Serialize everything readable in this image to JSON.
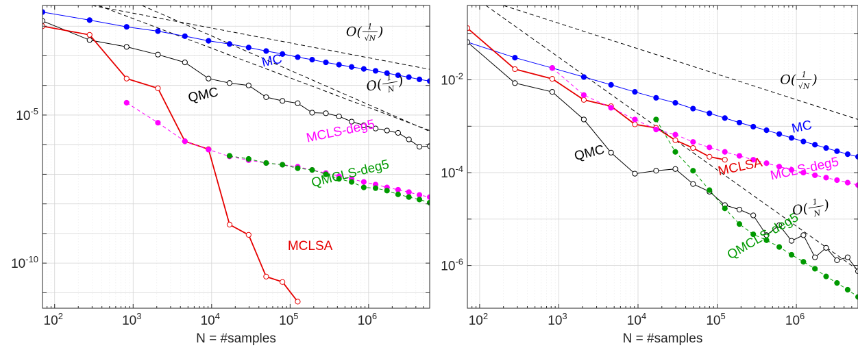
{
  "chart_data": [
    {
      "type": "line",
      "xscale": "log",
      "yscale": "log",
      "xlim": [
        70,
        6000000
      ],
      "ylim": [
        3e-12,
        0.05
      ],
      "xticks": [
        100,
        1000,
        10000,
        100000,
        1000000
      ],
      "yticks": [
        1e-05,
        1e-10
      ],
      "xlabel": "N = #samples",
      "ylabel": "",
      "grid": true,
      "series": [
        {
          "name": "MC",
          "color": "#0000ff",
          "style": "solid",
          "marker": "filled",
          "x": [
            70,
            279,
            826,
            2069,
            4566,
            9127,
            16917,
            29611,
            49527,
            79857,
            124983,
            190843,
            285495,
            419695,
            607738,
            868545,
            1227047,
            1714953,
            2374001,
            3259004,
            4442106,
            6011000
          ],
          "y": [
            0.03,
            0.016,
            0.0095,
            0.0068,
            0.0046,
            0.0032,
            0.0025,
            0.0019,
            0.00145,
            0.00115,
            0.0009,
            0.00074,
            0.0006,
            0.0005,
            0.00042,
            0.00036,
            0.00031,
            0.00026,
            0.00022,
            0.00019,
            0.00016,
            0.00014
          ]
        },
        {
          "name": "QMC",
          "color": "#000000",
          "style": "solid",
          "marker": "open",
          "x": [
            70,
            279,
            826,
            2069,
            4566,
            9127,
            16917,
            29611,
            49527,
            79857,
            124983,
            190843,
            285495,
            419695,
            607738,
            868545,
            1227047,
            1714953,
            2374001,
            3259004,
            4442106,
            6011000
          ],
          "y": [
            0.015,
            0.0034,
            0.002,
            0.0011,
            0.0006,
            0.00017,
            0.00012,
            0.0001,
            4e-05,
            3e-05,
            2.5e-05,
            1.2e-05,
            1.15e-05,
            9e-06,
            6e-06,
            4.5e-06,
            3.5e-06,
            3e-06,
            2.5e-06,
            1.5e-06,
            8.5e-07,
            9e-07
          ]
        },
        {
          "name": "MCLSA",
          "color": "#e60000",
          "style": "solid",
          "marker": "open",
          "x": [
            70,
            279,
            826,
            2069,
            4566,
            9127,
            16917,
            29611,
            49527,
            79857,
            124983
          ],
          "y": [
            0.01,
            0.0051,
            0.00017,
            8e-05,
            1.3e-06,
            7e-07,
            2e-09,
            9e-10,
            3.5e-11,
            2.3e-11,
            5e-12
          ]
        },
        {
          "name": "MCLS-deg5",
          "color": "#ff00ff",
          "style": "dashed",
          "marker": "filled",
          "x": [
            826,
            2069,
            4566,
            9127,
            16917,
            29611,
            49527,
            79857,
            124983,
            190843,
            285495,
            419695,
            607738,
            868545,
            1227047,
            1714953,
            2374001,
            3259004,
            4442106,
            6011000
          ],
          "y": [
            2.6e-05,
            5.5e-06,
            1.3e-06,
            6.8e-07,
            4e-07,
            3e-07,
            2.4e-07,
            2.1e-07,
            1.8e-07,
            1.4e-07,
            1.1e-07,
            8.5e-08,
            7e-08,
            5.5e-08,
            4.5e-08,
            3.6e-08,
            3e-08,
            2.5e-08,
            2e-08,
            1.7e-08
          ]
        },
        {
          "name": "QMCLS-deg5",
          "color": "#009900",
          "style": "dashed",
          "marker": "filled",
          "x": [
            16917,
            29611,
            49527,
            79857,
            124983,
            190843,
            285495,
            419695,
            607738,
            868545,
            1227047,
            1714953,
            2374001,
            3259004,
            4442106,
            6011000
          ],
          "y": [
            4.2e-07,
            3.3e-07,
            2.4e-07,
            2.1e-07,
            1.6e-07,
            1.4e-07,
            1e-07,
            7e-08,
            5.5e-08,
            3.6e-08,
            3.4e-08,
            2.8e-08,
            2.1e-08,
            1.7e-08,
            1.4e-08,
            1.1e-08
          ]
        }
      ],
      "reference_lines": [
        {
          "label": "O(1/√N)",
          "x": [
            300,
            6000000
          ],
          "y": [
            0.05,
            0.00035
          ]
        },
        {
          "label": "O(1/N)",
          "x": [
            300,
            6000000
          ],
          "y": [
            0.06,
            3e-06
          ]
        },
        {
          "label": "",
          "x": [
            1300,
            6000000
          ],
          "y": [
            0.05,
            2.8e-06
          ]
        }
      ],
      "labels": [
        {
          "text": "MC",
          "color": "#0000ff",
          "x": 60000,
          "y": 0.0005,
          "angle": -12
        },
        {
          "text": "QMC",
          "color": "#000000",
          "x": 8000,
          "y": 3.5e-05,
          "angle": -12
        },
        {
          "text": "MCLS-deg5",
          "color": "#ff00ff",
          "x": 450000,
          "y": 2.1e-06,
          "angle": -12
        },
        {
          "text": "QMCLS-deg5",
          "color": "#009900",
          "x": 600000,
          "y": 7.8e-08,
          "angle": -14
        },
        {
          "text": "MCLSA",
          "color": "#e60000",
          "x": 180000,
          "y": 2.8e-10,
          "angle": 0
        },
        {
          "text": "O(1/√N)",
          "color": "#000000",
          "x": 1000000,
          "y": 0.0065,
          "angle": 0
        },
        {
          "text": "O(1/N)",
          "color": "#000000",
          "x": 1800000,
          "y": 0.00012,
          "angle": -10
        }
      ]
    },
    {
      "type": "line",
      "xscale": "log",
      "yscale": "log",
      "xlim": [
        70,
        6000000
      ],
      "ylim": [
        1.2e-07,
        0.4
      ],
      "xticks": [
        100,
        1000,
        10000,
        100000,
        1000000
      ],
      "yticks": [
        0.01,
        0.0001,
        1e-06
      ],
      "xlabel": "N = #samples",
      "ylabel": "",
      "grid": true,
      "series": [
        {
          "name": "MC",
          "color": "#0000ff",
          "style": "solid",
          "marker": "filled",
          "x": [
            70,
            279,
            826,
            2069,
            4566,
            9127,
            16917,
            29611,
            49527,
            79857,
            124983,
            190843,
            285495,
            419695,
            607738,
            868545,
            1227047,
            1714953,
            2374001,
            3259004,
            4442106,
            6011000
          ],
          "y": [
            0.065,
            0.03,
            0.018,
            0.0115,
            0.0078,
            0.0055,
            0.0041,
            0.0032,
            0.0024,
            0.0019,
            0.0015,
            0.0012,
            0.00098,
            0.00082,
            0.00068,
            0.00056,
            0.00047,
            0.0004,
            0.00034,
            0.00029,
            0.00025,
            0.00022
          ]
        },
        {
          "name": "QMC",
          "color": "#000000",
          "style": "solid",
          "marker": "open",
          "x": [
            70,
            279,
            826,
            2069,
            4566,
            9127,
            16917,
            29611,
            49527,
            79857,
            124983,
            190843,
            285495,
            419695,
            607738,
            868545,
            1227047,
            1714953,
            2374001,
            3259004,
            4442106,
            6011000
          ],
          "y": [
            0.065,
            0.0085,
            0.0055,
            0.0014,
            0.00027,
            9.5e-05,
            0.00011,
            0.00012,
            5.7e-05,
            3.9e-05,
            2e-05,
            1.6e-05,
            1.2e-05,
            4.5e-06,
            7.4e-06,
            3.4e-06,
            4.5e-06,
            1.5e-06,
            2.4e-06,
            1.3e-06,
            1.5e-06,
            7.5e-07
          ]
        },
        {
          "name": "MCLSA",
          "color": "#e60000",
          "style": "solid",
          "marker": "open",
          "x": [
            70,
            279,
            826,
            2069,
            4566,
            9127,
            16917,
            29611,
            49527,
            79857,
            124983
          ],
          "y": [
            0.13,
            0.017,
            0.0105,
            0.0037,
            0.0027,
            0.0011,
            0.00092,
            0.0005,
            0.00034,
            0.00022,
            0.00019
          ]
        },
        {
          "name": "MCLS-deg5",
          "color": "#ff00ff",
          "style": "dashed",
          "marker": "filled",
          "x": [
            826,
            2069,
            4566,
            9127,
            16917,
            29611,
            49527,
            79857,
            124983,
            190843,
            285495,
            419695,
            607738,
            868545,
            1227047,
            1714953,
            2374001,
            3259004,
            4442106,
            6011000
          ],
          "y": [
            0.018,
            0.0047,
            0.0025,
            0.0014,
            0.00085,
            0.00066,
            0.00046,
            0.00035,
            0.00028,
            0.00023,
            0.00019,
            0.00016,
            0.000135,
            0.000115,
            0.0001,
            8.8e-05,
            7.8e-05,
            6.9e-05,
            6.1e-05,
            5.4e-05
          ]
        },
        {
          "name": "QMCLS-deg5",
          "color": "#009900",
          "style": "dashed",
          "marker": "filled",
          "x": [
            16917,
            29611,
            49527,
            79857,
            124983,
            190843,
            285495,
            419695,
            607738,
            868545,
            1227047,
            1714953,
            2374001,
            3259004,
            4442106,
            6011000
          ],
          "y": [
            0.0014,
            0.00028,
            0.00011,
            4.2e-05,
            1.7e-05,
            7.8e-06,
            4.7e-06,
            3.5e-06,
            2.5e-06,
            1.7e-06,
            1.2e-06,
            8.5e-07,
            5.8e-07,
            4.2e-07,
            3e-07,
            2.1e-07
          ]
        }
      ],
      "reference_lines": [
        {
          "label": "O(1/√N)",
          "x": [
            200,
            6000000
          ],
          "y": [
            0.4,
            0.0014
          ]
        },
        {
          "label": "O(1/N)",
          "x": [
            120,
            6000000
          ],
          "y": [
            0.4,
            8e-07
          ]
        }
      ],
      "labels": [
        {
          "text": "MC",
          "color": "#0000ff",
          "x": 1200000,
          "y": 0.0008,
          "angle": -12
        },
        {
          "text": "QMC",
          "color": "#000000",
          "x": 2500,
          "y": 0.00022,
          "angle": -14
        },
        {
          "text": "MCLSA",
          "color": "#e60000",
          "x": 200000,
          "y": 0.00011,
          "angle": -12
        },
        {
          "text": "MCLS-deg5",
          "color": "#ff00ff",
          "x": 1300000,
          "y": 0.0001,
          "angle": -12
        },
        {
          "text": "QMCLS-deg5",
          "color": "#009900",
          "x": 400000,
          "y": 3.6e-06,
          "angle": -30
        },
        {
          "text": "O(1/√N)",
          "color": "#000000",
          "x": 1200000,
          "y": 0.01,
          "angle": 0
        },
        {
          "text": "O(1/N)",
          "color": "#000000",
          "x": 1700000,
          "y": 1.8e-05,
          "angle": -10
        }
      ]
    }
  ]
}
